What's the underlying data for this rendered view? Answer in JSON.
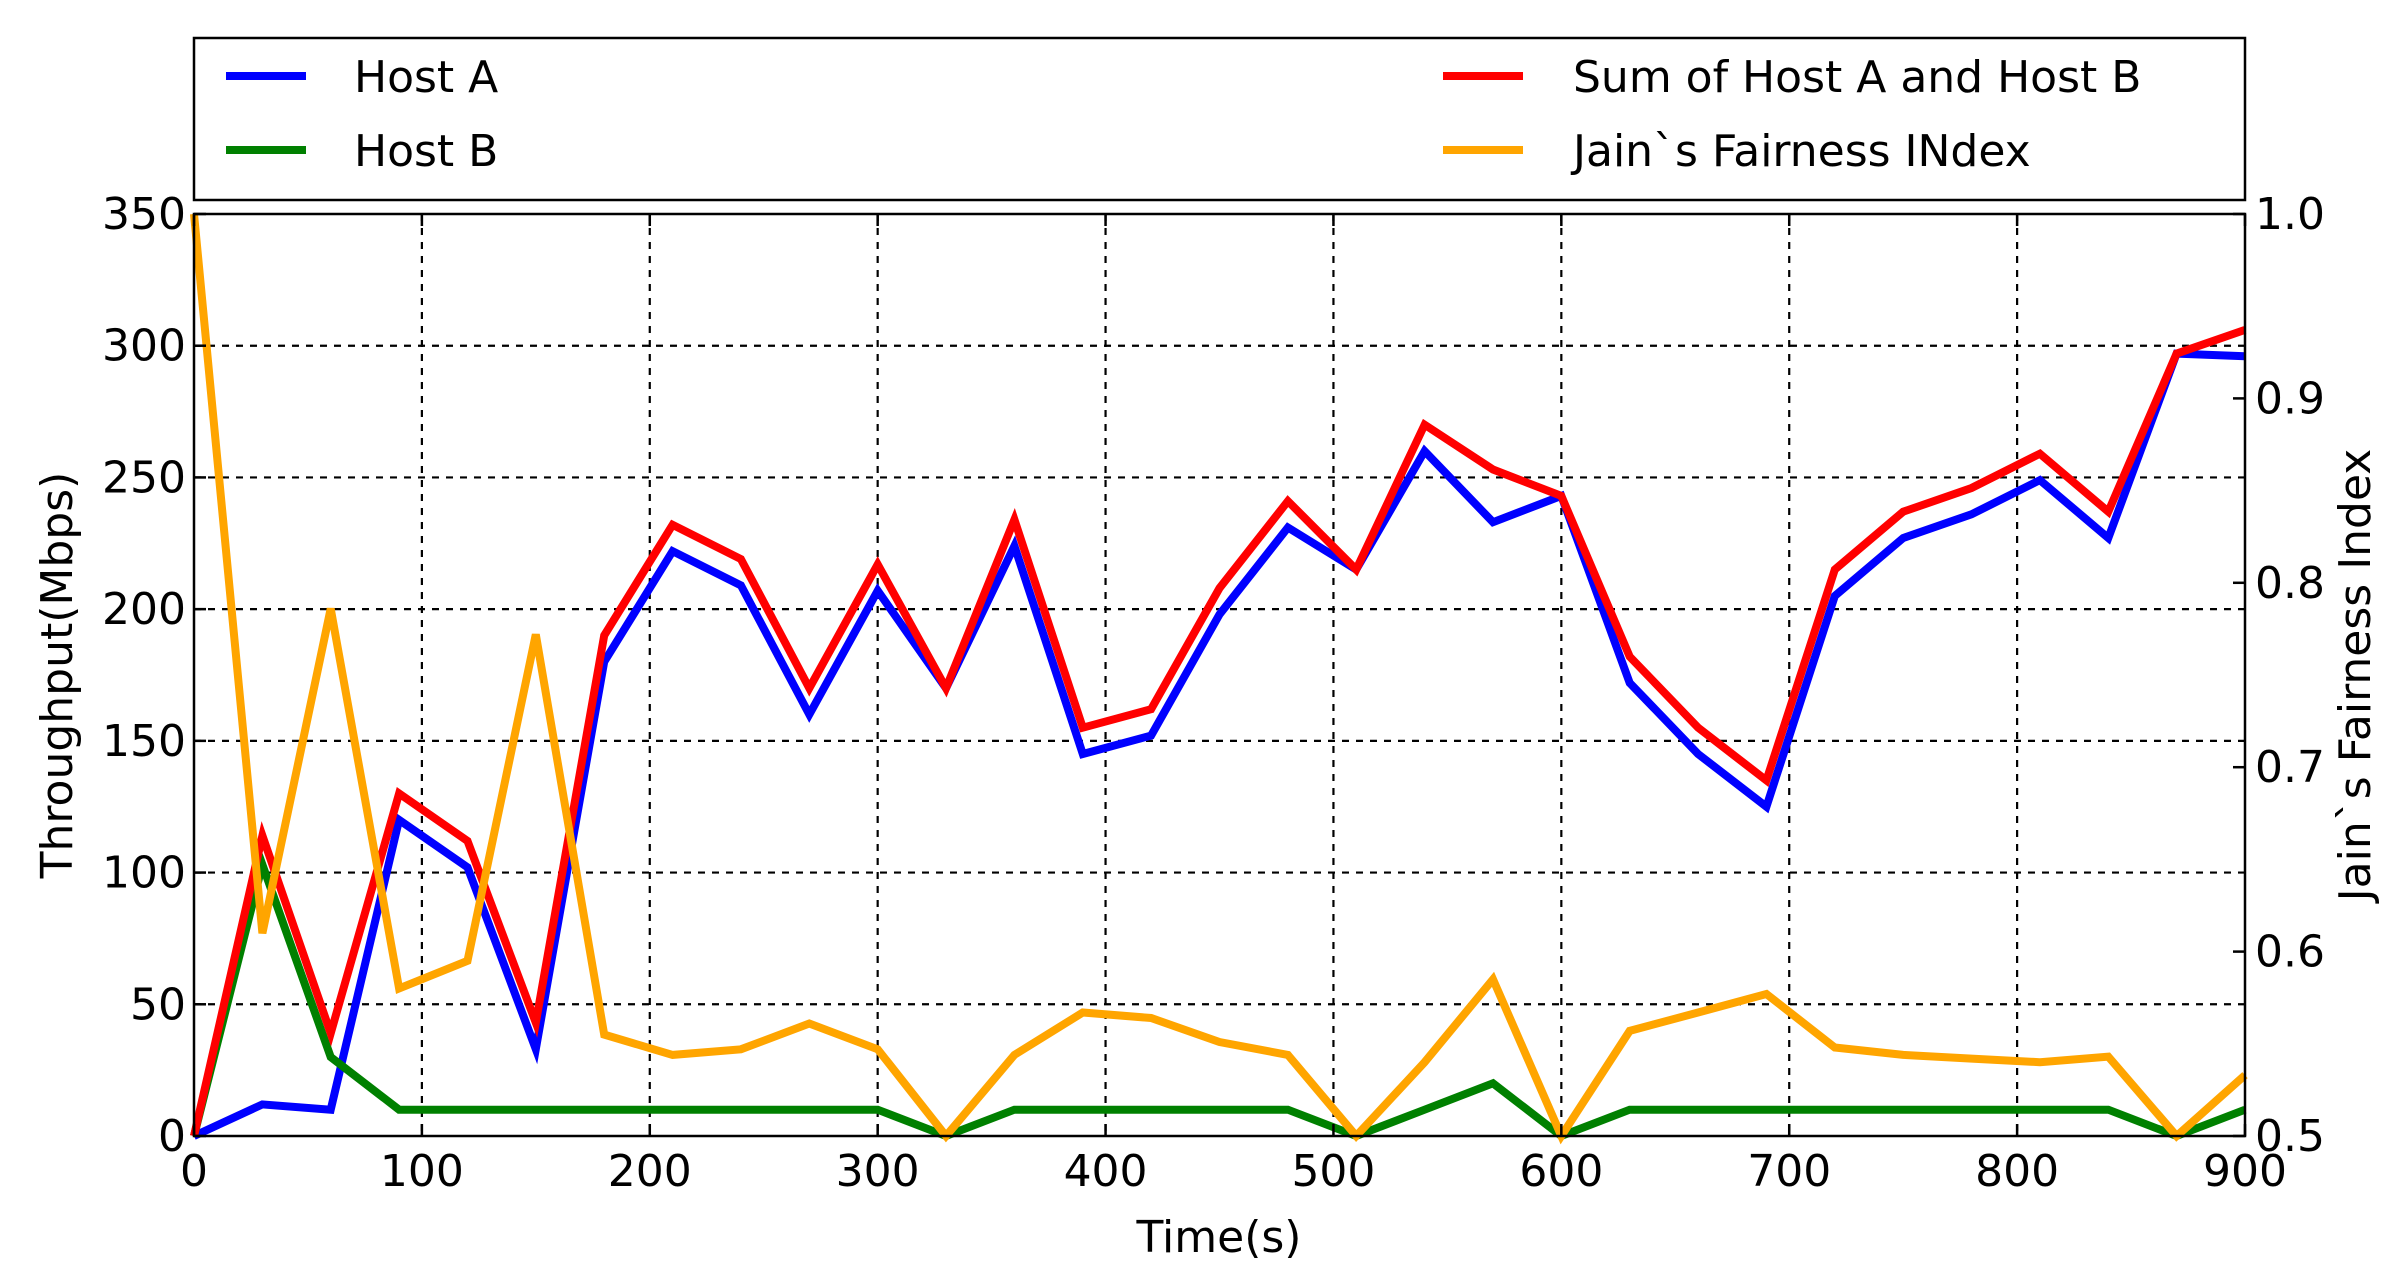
{
  "chart_data": {
    "type": "line",
    "xlabel": "Time(s)",
    "ylabel": "Throughput(Mbps)",
    "y2label": "Jain`s Fairness Index",
    "xlim": [
      0,
      900
    ],
    "ylim": [
      0,
      350
    ],
    "y2lim": [
      0.5,
      1.0
    ],
    "grid": true,
    "legend_placement": "top, above plot, two columns",
    "x_ticks": [
      "0",
      "100",
      "200",
      "300",
      "400",
      "500",
      "600",
      "700",
      "800",
      "900"
    ],
    "y_ticks": [
      "0",
      "50",
      "100",
      "150",
      "200",
      "250",
      "300",
      "350"
    ],
    "y2_ticks": [
      "0.5",
      "0.6",
      "0.7",
      "0.8",
      "0.9",
      "1.0"
    ],
    "x": [
      0,
      30,
      60,
      90,
      120,
      150,
      180,
      210,
      240,
      270,
      300,
      330,
      360,
      390,
      420,
      450,
      480,
      510,
      540,
      570,
      600,
      630,
      660,
      690,
      720,
      750,
      780,
      810,
      840,
      870,
      900
    ],
    "series": [
      {
        "name": "Host A",
        "axis": "left",
        "color": "#0000ff",
        "values": [
          0,
          12,
          10,
          120,
          102,
          33,
          180,
          222,
          209,
          160,
          207,
          170,
          224,
          145,
          152,
          198,
          231,
          215,
          260,
          233,
          243,
          172,
          145,
          125,
          205,
          227,
          236,
          249,
          227,
          297,
          296
        ]
      },
      {
        "name": "Host B",
        "axis": "left",
        "color": "#008000",
        "values": [
          0,
          103,
          30,
          10,
          10,
          10,
          10,
          10,
          10,
          10,
          10,
          0,
          10,
          10,
          10,
          10,
          10,
          0,
          10,
          20,
          0,
          10,
          10,
          10,
          10,
          10,
          10,
          10,
          10,
          0,
          10
        ]
      },
      {
        "name": "Sum of Host A and Host B",
        "axis": "left",
        "color": "#ff0000",
        "values": [
          0,
          114,
          39,
          130,
          112,
          43,
          190,
          232,
          219,
          170,
          217,
          170,
          234,
          155,
          162,
          208,
          241,
          215,
          270,
          253,
          243,
          182,
          155,
          135,
          215,
          237,
          246,
          259,
          237,
          297,
          306
        ]
      },
      {
        "name": "Jain`s Fairness INdex",
        "axis": "right",
        "color": "#ffa500",
        "values": [
          1.0,
          0.61,
          0.786,
          0.58,
          0.595,
          0.772,
          0.555,
          0.544,
          0.547,
          0.561,
          0.547,
          0.5,
          0.544,
          0.567,
          0.564,
          0.551,
          0.544,
          0.5,
          0.54,
          0.585,
          0.5,
          0.557,
          0.567,
          0.577,
          0.548,
          0.544,
          0.542,
          0.54,
          0.543,
          0.5,
          0.533
        ]
      }
    ]
  }
}
